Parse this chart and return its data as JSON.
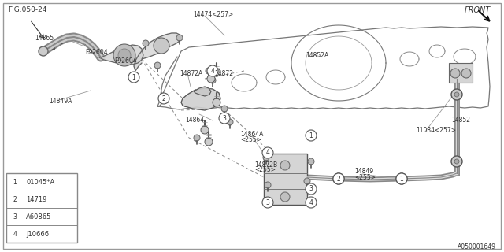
{
  "bg": "#ffffff",
  "border": "#aaaaaa",
  "lc": "#555555",
  "tc": "#333333",
  "fig_ref": "FIG.050-24",
  "part_id": "A050001649",
  "front": "FRONT",
  "legend": [
    {
      "n": "1",
      "c": "01045*A"
    },
    {
      "n": "2",
      "c": "14719"
    },
    {
      "n": "3",
      "c": "A60865"
    },
    {
      "n": "4",
      "c": "J10666"
    }
  ]
}
